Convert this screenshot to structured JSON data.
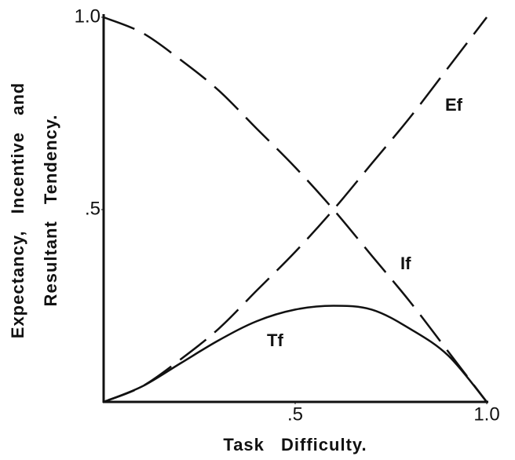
{
  "chart_data": {
    "type": "line",
    "x": [
      0,
      0.1,
      0.2,
      0.3,
      0.4,
      0.5,
      0.6,
      0.7,
      0.8,
      0.9,
      1.0
    ],
    "series": [
      {
        "name": "Ef",
        "color": "#111111",
        "style": "dashed",
        "values": [
          0,
          0.04,
          0.11,
          0.19,
          0.29,
          0.39,
          0.5,
          0.62,
          0.74,
          0.87,
          1.0
        ]
      },
      {
        "name": "If",
        "color": "#111111",
        "style": "dashed",
        "values": [
          1.0,
          0.96,
          0.89,
          0.81,
          0.71,
          0.61,
          0.5,
          0.38,
          0.26,
          0.13,
          0
        ]
      },
      {
        "name": "Tf",
        "color": "#111111",
        "style": "solid",
        "values": [
          0,
          0.04,
          0.1,
          0.16,
          0.21,
          0.24,
          0.25,
          0.24,
          0.19,
          0.12,
          0
        ]
      }
    ],
    "xlabel": "Task Difficulty.",
    "ylabel": [
      "Expectancy, Incentive and",
      "Resultant Tendency."
    ],
    "xlim": [
      0,
      1.0
    ],
    "ylim": [
      0,
      1.0
    ],
    "xticks": [
      {
        "value": 0.5,
        "label": ".5"
      },
      {
        "value": 1.0,
        "label": "1.0"
      }
    ],
    "yticks": [
      {
        "value": 0.5,
        "label": ".5"
      },
      {
        "value": 1.0,
        "label": "1.0"
      }
    ]
  }
}
